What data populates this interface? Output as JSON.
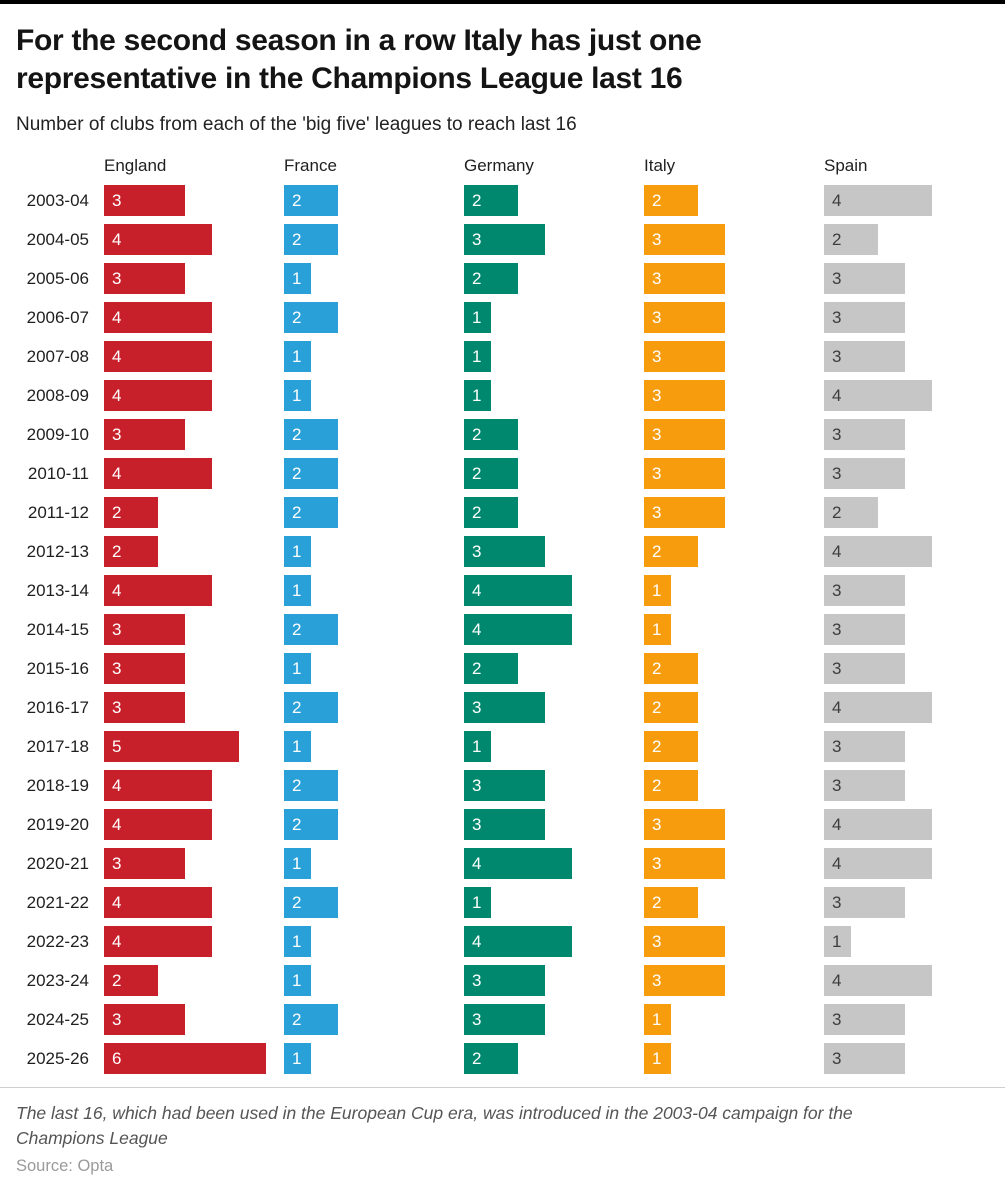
{
  "page": {
    "source_label": "Source: Opta"
  },
  "chart_data": {
    "type": "bar",
    "orientation": "horizontal",
    "title": "For the second season in a row Italy has just one representative in the Champions League last 16",
    "subtitle": "Number of clubs from each of the 'big five' leagues to reach last 16",
    "footnote": "The last 16, which had been used in the European Cup era, was introduced in the 2003-04 campaign for the Champions League",
    "source": "Opta",
    "xlim": [
      0,
      6
    ],
    "grid": false,
    "legend_position": "column-headers",
    "value_labels": "inside-bar-start",
    "categories": [
      "2003-04",
      "2004-05",
      "2005-06",
      "2006-07",
      "2007-08",
      "2008-09",
      "2009-10",
      "2010-11",
      "2011-12",
      "2012-13",
      "2013-14",
      "2014-15",
      "2015-16",
      "2016-17",
      "2017-18",
      "2018-19",
      "2019-20",
      "2020-21",
      "2021-22",
      "2022-23",
      "2023-24",
      "2024-25",
      "2025-26"
    ],
    "series": [
      {
        "name": "England",
        "color": "#c8202a",
        "value_color": "#ffffff",
        "values": [
          3,
          4,
          3,
          4,
          4,
          4,
          3,
          4,
          2,
          2,
          4,
          3,
          3,
          3,
          5,
          4,
          4,
          3,
          4,
          4,
          2,
          3,
          6
        ]
      },
      {
        "name": "France",
        "color": "#29a0d8",
        "value_color": "#ffffff",
        "values": [
          2,
          2,
          1,
          2,
          1,
          1,
          2,
          2,
          2,
          1,
          1,
          2,
          1,
          2,
          1,
          2,
          2,
          1,
          2,
          1,
          1,
          2,
          1
        ]
      },
      {
        "name": "Germany",
        "color": "#00886e",
        "value_color": "#ffffff",
        "values": [
          2,
          3,
          2,
          1,
          1,
          1,
          2,
          2,
          2,
          3,
          4,
          4,
          2,
          3,
          1,
          3,
          3,
          4,
          1,
          4,
          3,
          3,
          2
        ]
      },
      {
        "name": "Italy",
        "color": "#f79c0c",
        "value_color": "#ffffff",
        "values": [
          2,
          3,
          3,
          3,
          3,
          3,
          3,
          3,
          3,
          2,
          1,
          1,
          2,
          2,
          2,
          2,
          3,
          3,
          2,
          3,
          3,
          1,
          1
        ]
      },
      {
        "name": "Spain",
        "color": "#c6c6c6",
        "value_color": "#3d3d3d",
        "values": [
          4,
          2,
          3,
          3,
          3,
          4,
          3,
          3,
          2,
          4,
          3,
          3,
          3,
          4,
          3,
          3,
          4,
          4,
          3,
          1,
          4,
          3,
          3
        ]
      }
    ]
  }
}
